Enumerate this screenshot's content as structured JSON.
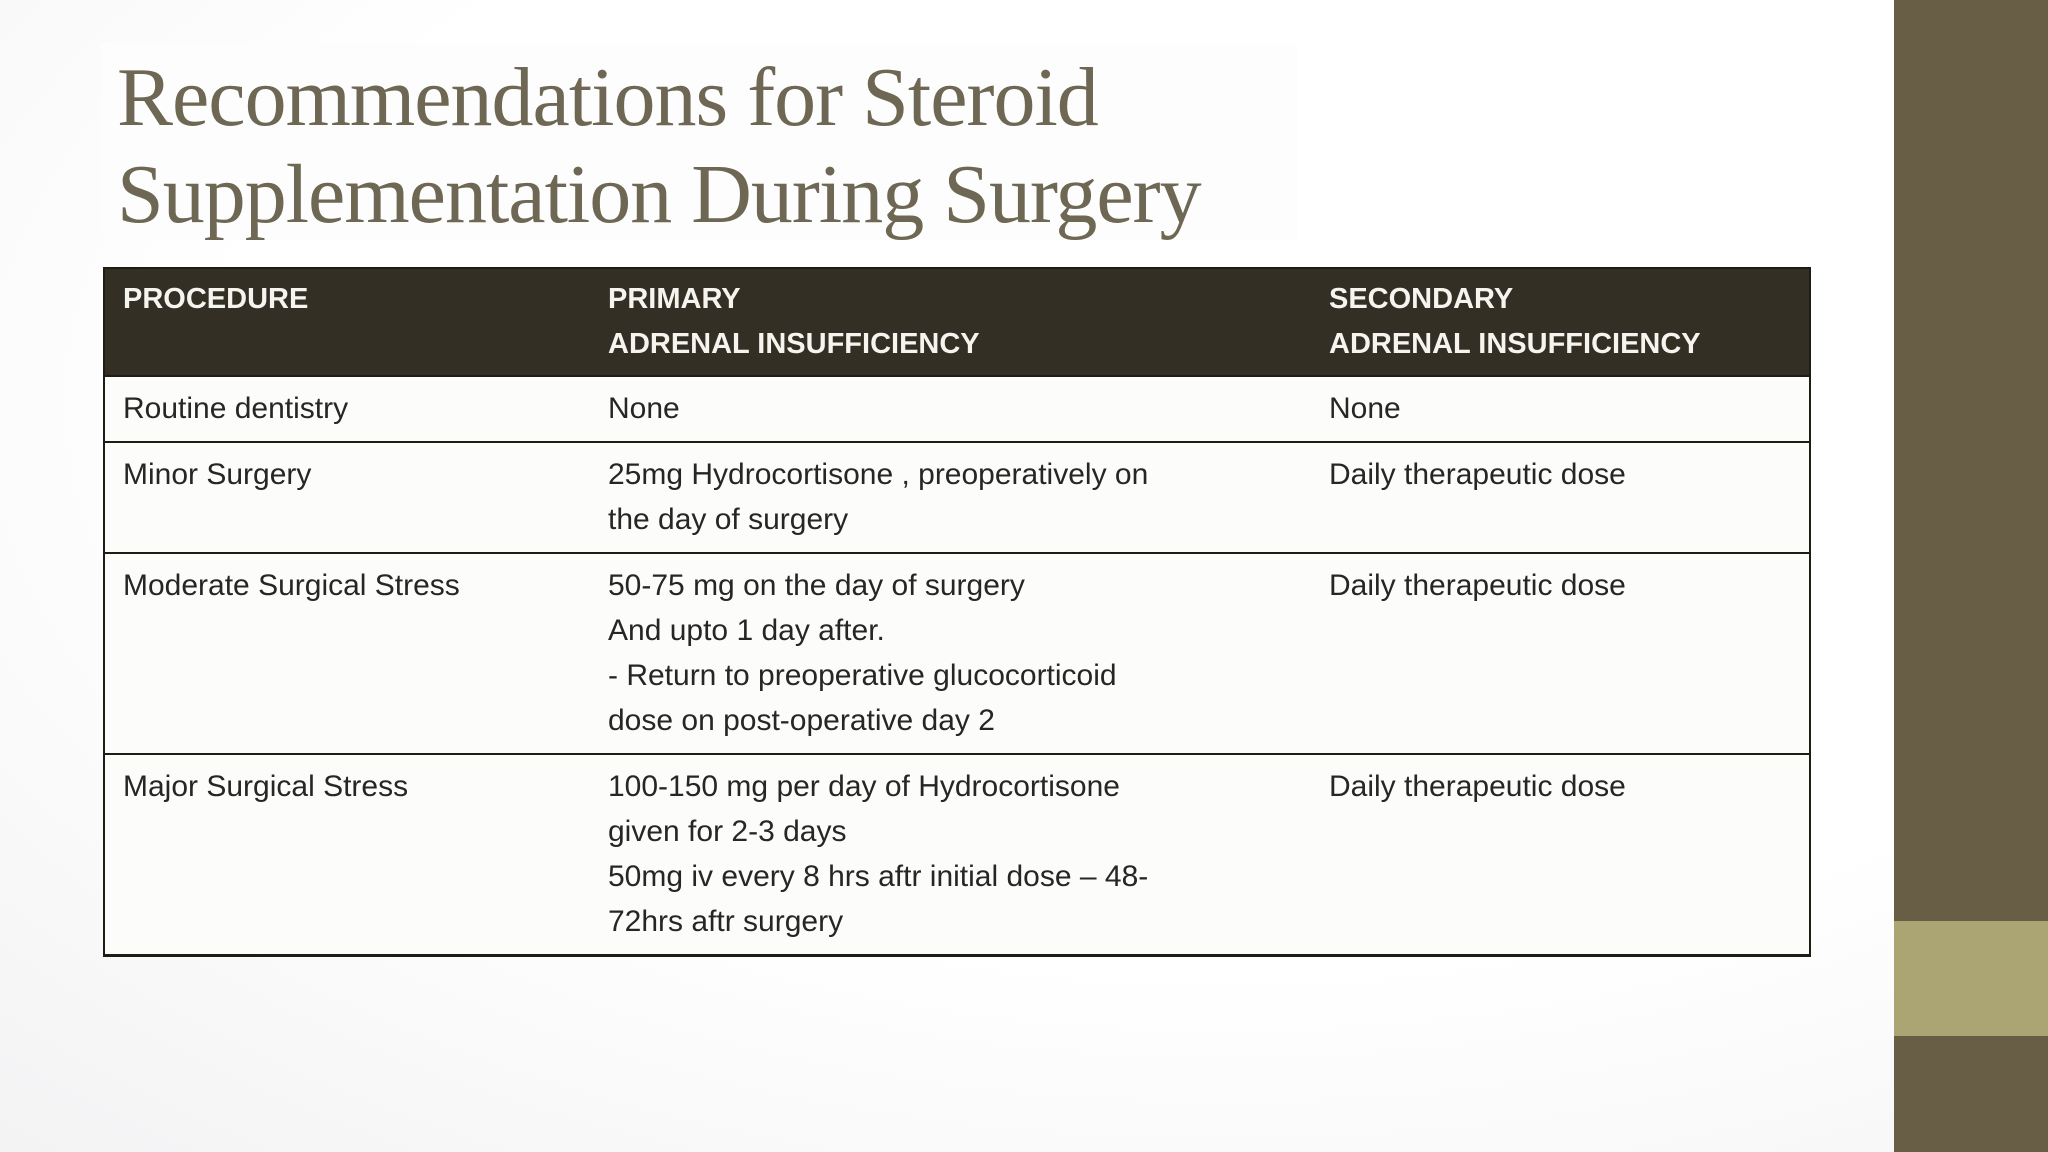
{
  "slide": {
    "title_lines": [
      "Recommendations for Steroid",
      "Supplementation During Surgery"
    ]
  },
  "table": {
    "headers": [
      {
        "lines": [
          "PROCEDURE"
        ]
      },
      {
        "lines": [
          "PRIMARY",
          "ADRENAL INSUFFICIENCY"
        ]
      },
      {
        "lines": [
          "SECONDARY",
          "ADRENAL INSUFFICIENCY"
        ]
      }
    ],
    "rows": [
      {
        "procedure": "Routine dentistry",
        "primary": [
          "None"
        ],
        "secondary": "None"
      },
      {
        "procedure": "Minor Surgery",
        "primary": [
          "25mg Hydrocortisone , preoperatively on",
          "the day of surgery"
        ],
        "secondary": "Daily therapeutic dose"
      },
      {
        "procedure": "Moderate Surgical Stress",
        "primary": [
          "50-75 mg on the day of surgery",
          "And upto 1 day after.",
          "- Return to preoperative glucocorticoid",
          "dose on post-operative day 2"
        ],
        "secondary": "Daily therapeutic dose"
      },
      {
        "procedure": "Major Surgical Stress",
        "primary": [
          "100-150 mg per day of Hydrocortisone",
          "given for 2-3 days",
          "50mg iv every 8 hrs aftr initial dose – 48-",
          "72hrs aftr surgery"
        ],
        "secondary": "Daily therapeutic dose"
      }
    ]
  },
  "colors": {
    "header_bg": "#332f24",
    "header_text": "#f6f4ef",
    "body_text": "#262626",
    "border": "#1f1c15",
    "title_text": "#6d6753",
    "title_box_bg": "#fdfdfd",
    "row_bg": "#fcfcfb",
    "band": "#685e46",
    "band_square": "#aba473"
  }
}
